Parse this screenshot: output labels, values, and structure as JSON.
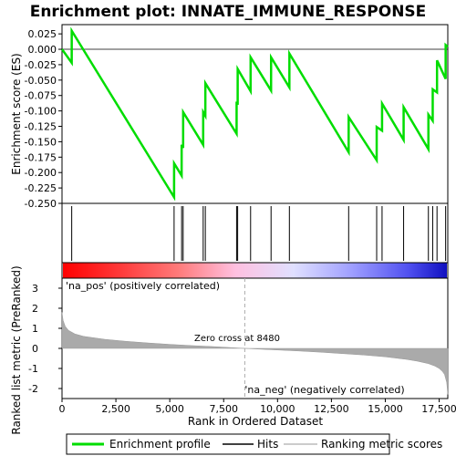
{
  "chart_data": {
    "type": "line",
    "title": "Enrichment plot: INNATE_IMMUNE_RESPONSE",
    "xlabel": "Rank in Ordered Dataset",
    "top_panel": {
      "ylabel": "Enrichment score (ES)",
      "ylim": [
        -0.25,
        0.04
      ],
      "yticks": [
        0.025,
        0.0,
        -0.025,
        -0.05,
        -0.075,
        -0.1,
        -0.125,
        -0.15,
        -0.175,
        -0.2,
        -0.225,
        -0.25
      ],
      "ytick_labels": [
        "0.025",
        "0.000",
        "-0.025",
        "-0.050",
        "-0.075",
        "-0.100",
        "-0.125",
        "-0.150",
        "-0.175",
        "-0.200",
        "-0.225",
        "-0.250"
      ],
      "series_color": "#00dd00",
      "profile_x": [
        0,
        450,
        451,
        5200,
        5201,
        5550,
        5551,
        5620,
        5621,
        6550,
        6551,
        6650,
        6651,
        8100,
        8101,
        8150,
        8151,
        8750,
        8751,
        9700,
        9701,
        10550,
        10551,
        13300,
        13301,
        14600,
        14601,
        14850,
        14851,
        15850,
        15851,
        17000,
        17001,
        17200,
        17201,
        17400,
        17401,
        17800,
        17801,
        17900
      ],
      "profile_y": [
        0.0,
        -0.022,
        0.03,
        -0.24,
        -0.185,
        -0.205,
        -0.155,
        -0.16,
        -0.102,
        -0.155,
        -0.102,
        -0.108,
        -0.055,
        -0.137,
        -0.085,
        -0.09,
        -0.032,
        -0.068,
        -0.013,
        -0.067,
        -0.013,
        -0.062,
        -0.007,
        -0.167,
        -0.11,
        -0.18,
        -0.126,
        -0.132,
        -0.088,
        -0.147,
        -0.094,
        -0.162,
        -0.106,
        -0.116,
        -0.065,
        -0.07,
        -0.018,
        -0.048,
        0.007,
        0.004
      ]
    },
    "hits": [
      450,
      5200,
      5550,
      5620,
      6550,
      6650,
      8100,
      8150,
      8750,
      9700,
      10550,
      13300,
      14600,
      14850,
      15850,
      17000,
      17200,
      17400,
      17800
    ],
    "ranked_panel": {
      "ylabel": "Ranked list metric (PreRanked)",
      "ylim": [
        -2.5,
        3.5
      ],
      "yticks": [
        3,
        2,
        1,
        0,
        -1,
        -2
      ],
      "ytick_labels": [
        "3",
        "2",
        "1",
        "0",
        "-1",
        "-2"
      ],
      "zero_cross_label": "Zero cross at 8480",
      "zero_cross": 8480,
      "pos_label": "'na_pos' (positively correlated)",
      "neg_label": "'na_neg' (negatively correlated)",
      "metric_x": [
        0,
        50,
        150,
        300,
        600,
        1000,
        2000,
        3000,
        4000,
        5000,
        6000,
        7000,
        8000,
        8480,
        9000,
        10000,
        11000,
        12000,
        13000,
        14000,
        15000,
        16000,
        16500,
        17000,
        17300,
        17500,
        17650,
        17750,
        17850,
        17900
      ],
      "metric_y": [
        1.8,
        1.4,
        1.1,
        0.9,
        0.72,
        0.6,
        0.45,
        0.35,
        0.27,
        0.2,
        0.14,
        0.09,
        0.03,
        0.0,
        -0.03,
        -0.08,
        -0.13,
        -0.19,
        -0.26,
        -0.33,
        -0.42,
        -0.55,
        -0.64,
        -0.76,
        -0.88,
        -1.0,
        -1.15,
        -1.3,
        -1.7,
        -2.3
      ],
      "series_color": "#aaaaaa"
    },
    "xlim": [
      0,
      17900
    ],
    "xticks": [
      0,
      2500,
      5000,
      7500,
      10000,
      12500,
      15000,
      17500
    ],
    "xtick_labels": [
      "0",
      "2,500",
      "5,000",
      "7,500",
      "10,000",
      "12,500",
      "15,000",
      "17,500"
    ],
    "legend": {
      "placement": "bottom",
      "items": [
        {
          "label": "Enrichment profile",
          "color": "#00dd00"
        },
        {
          "label": "Hits",
          "color": "#000000"
        },
        {
          "label": "Ranking metric scores",
          "color": "#bbbbbb"
        }
      ]
    }
  }
}
